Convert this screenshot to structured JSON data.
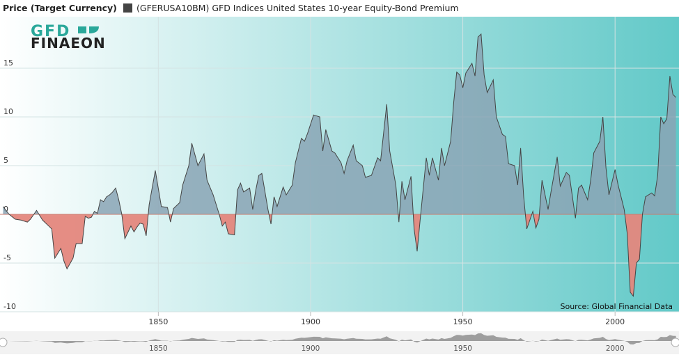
{
  "chart_data": {
    "type": "area",
    "ylabel": "Price (Target Currency)",
    "logo": {
      "top": "GFD",
      "bottom": "FINAEON"
    },
    "source": "Source: Global Financial Data",
    "positive_color": "#8aa5b5",
    "negative_color": "#e4877d",
    "x": [
      1799,
      1801,
      1803,
      1805,
      1807,
      1808,
      1810,
      1812,
      1814,
      1815,
      1816,
      1818,
      1819,
      1820,
      1822,
      1823,
      1825,
      1826,
      1827,
      1828,
      1829,
      1830,
      1831,
      1832,
      1833,
      1834,
      1835,
      1836,
      1837,
      1838,
      1839,
      1841,
      1842,
      1843,
      1844,
      1845,
      1846,
      1847,
      1849,
      1851,
      1853,
      1854,
      1855,
      1857,
      1858,
      1860,
      1861,
      1863,
      1865,
      1866,
      1868,
      1870,
      1871,
      1872,
      1873,
      1875,
      1876,
      1877,
      1878,
      1880,
      1881,
      1882,
      1883,
      1884,
      1886,
      1887,
      1888,
      1889,
      1891,
      1892,
      1894,
      1895,
      1897,
      1898,
      1899,
      1901,
      1903,
      1904,
      1905,
      1907,
      1908,
      1910,
      1911,
      1912,
      1914,
      1915,
      1917,
      1918,
      1920,
      1922,
      1923,
      1925,
      1926,
      1928,
      1929,
      1930,
      1931,
      1933,
      1934,
      1935,
      1936,
      1938,
      1939,
      1940,
      1942,
      1943,
      1944,
      1946,
      1947,
      1948,
      1949,
      1950,
      1951,
      1953,
      1954,
      1955,
      1956,
      1957,
      1958,
      1960,
      1961,
      1963,
      1964,
      1965,
      1967,
      1968,
      1969,
      1970,
      1971,
      1973,
      1974,
      1975,
      1976,
      1978,
      1979,
      1981,
      1982,
      1984,
      1985,
      1987,
      1988,
      1989,
      1991,
      1992,
      1993,
      1995,
      1996,
      1997,
      1998,
      2000,
      2001,
      2003,
      2004,
      2005,
      2006,
      2007,
      2008,
      2009,
      2010,
      2011,
      2012,
      2013,
      2014,
      2015,
      2016,
      2017,
      2018,
      2019,
      2020
    ],
    "series": [
      {
        "name": "(GFERUSA10BM) GFD Indices United States 10-year Equity-Bond Premium",
        "color": "#444444",
        "values": [
          0.8,
          0,
          -0.5,
          -0.6,
          -0.8,
          -0.5,
          0.4,
          -0.6,
          -1.2,
          -1.5,
          -4.5,
          -3.5,
          -4.8,
          -5.6,
          -4.5,
          -3.0,
          -3.0,
          -0.2,
          -0.4,
          -0.3,
          0.3,
          0.1,
          1.5,
          1.3,
          1.8,
          2.0,
          2.3,
          2.7,
          1.5,
          0,
          -2.5,
          -1.2,
          -1.8,
          -1.3,
          -0.9,
          -1.0,
          -2.2,
          1.0,
          4.5,
          0.8,
          0.7,
          -0.8,
          0.6,
          1.2,
          3.0,
          5.0,
          7.3,
          5.0,
          6.2,
          3.5,
          2.0,
          0,
          -1.2,
          -0.8,
          -2.0,
          -2.1,
          2.5,
          3.2,
          2.3,
          2.7,
          0.5,
          2.5,
          4.0,
          4.2,
          0.5,
          -1.0,
          1.8,
          0.8,
          2.8,
          2.0,
          3.0,
          5.3,
          7.8,
          7.5,
          8.3,
          10.2,
          10.0,
          6.5,
          8.7,
          6.5,
          6.3,
          5.3,
          4.2,
          5.5,
          7.1,
          5.5,
          5.0,
          3.8,
          4.0,
          5.8,
          5.5,
          11.3,
          6.5,
          3.0,
          -0.8,
          3.4,
          1.5,
          3.9,
          -1.5,
          -3.8,
          -0.5,
          5.8,
          4.0,
          5.8,
          3.5,
          6.8,
          5.0,
          7.5,
          11.5,
          14.6,
          14.3,
          13.0,
          14.5,
          15.5,
          14.2,
          18.2,
          18.5,
          14.3,
          12.5,
          13.8,
          10.0,
          8.2,
          8.0,
          5.2,
          5.0,
          3.0,
          6.8,
          1.8,
          -1.5,
          0.3,
          -1.4,
          -0.5,
          3.5,
          0.5,
          2.4,
          5.9,
          2.9,
          4.3,
          4.0,
          -0.4,
          2.7,
          3.0,
          1.5,
          3.5,
          6.3,
          7.5,
          10.0,
          4.8,
          2.0,
          4.6,
          3.0,
          0.5,
          -2.0,
          -8.0,
          -8.4,
          -5.0,
          -4.6,
          0,
          1.8,
          2.0,
          2.2,
          1.9,
          4.0,
          10.0,
          9.3,
          9.8,
          14.2,
          12.3,
          12.0
        ]
      }
    ],
    "xlim": [
      1798,
      2021
    ],
    "xticks": [
      1850,
      1900,
      1950,
      2000
    ],
    "ylim": [
      -10,
      20
    ],
    "yticks": [
      -10,
      -5,
      0,
      5,
      10,
      15
    ],
    "grid": true
  }
}
